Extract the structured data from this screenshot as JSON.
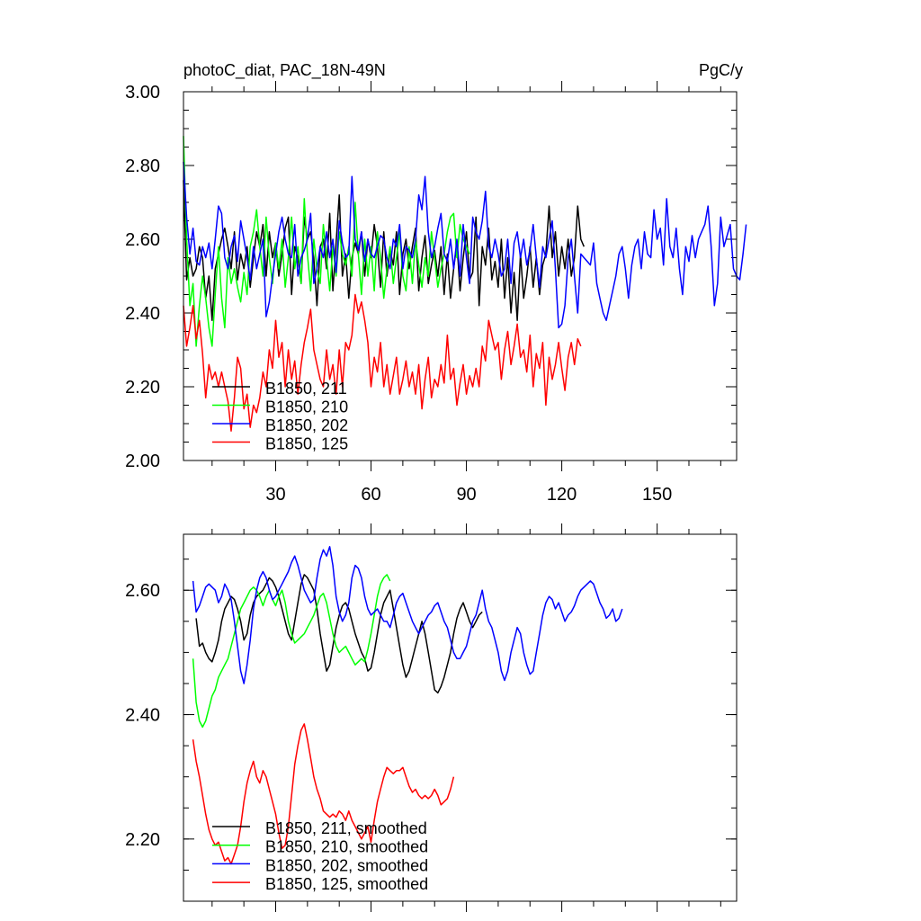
{
  "chart_data": [
    {
      "type": "line",
      "title": "photoC_diat, PAC_18N-49N",
      "units": "PgC/y",
      "ylim": [
        2.0,
        3.0
      ],
      "xlim": [
        1,
        175
      ],
      "y_ticks": [
        "2.00",
        "2.20",
        "2.40",
        "2.60",
        "2.80",
        "3.00"
      ],
      "x_ticks": [
        "30",
        "60",
        "90",
        "120",
        "150"
      ],
      "legend_position": "bottom-left",
      "series": [
        {
          "name": "B1850, 211",
          "color": "#000000",
          "x_start": 1,
          "values": [
            2.76,
            2.49,
            2.55,
            2.5,
            2.52,
            2.58,
            2.55,
            2.44,
            2.5,
            2.38,
            2.52,
            2.56,
            2.6,
            2.63,
            2.58,
            2.52,
            2.62,
            2.49,
            2.56,
            2.52,
            2.58,
            2.47,
            2.55,
            2.62,
            2.58,
            2.64,
            2.5,
            2.62,
            2.55,
            2.59,
            2.5,
            2.56,
            2.63,
            2.66,
            2.45,
            2.58,
            2.55,
            2.48,
            2.66,
            2.6,
            2.62,
            2.55,
            2.42,
            2.58,
            2.6,
            2.52,
            2.67,
            2.46,
            2.59,
            2.72,
            2.5,
            2.56,
            2.44,
            2.55,
            2.59,
            2.56,
            2.62,
            2.5,
            2.6,
            2.55,
            2.64,
            2.58,
            2.47,
            2.62,
            2.5,
            2.57,
            2.53,
            2.62,
            2.45,
            2.56,
            2.6,
            2.52,
            2.58,
            2.63,
            2.46,
            2.55,
            2.61,
            2.48,
            2.53,
            2.57,
            2.5,
            2.58,
            2.45,
            2.56,
            2.44,
            2.52,
            2.59,
            2.46,
            2.55,
            2.62,
            2.49,
            2.51,
            2.66,
            2.42,
            2.58,
            2.53,
            2.63,
            2.49,
            2.54,
            2.47,
            2.6,
            2.44,
            2.55,
            2.4,
            2.51,
            2.38,
            2.56,
            2.44,
            2.5,
            2.58,
            2.47,
            2.55,
            2.45,
            2.53,
            2.56,
            2.69,
            2.55,
            2.62,
            2.5,
            2.58,
            2.52,
            2.6,
            2.5,
            2.55,
            2.69,
            2.6,
            2.58
          ]
        },
        {
          "name": "B1850, 210",
          "color": "#00ff00",
          "x_start": 1,
          "values": [
            2.88,
            2.6,
            2.42,
            2.48,
            2.31,
            2.42,
            2.5,
            2.44,
            2.36,
            2.31,
            2.45,
            2.58,
            2.44,
            2.36,
            2.55,
            2.48,
            2.52,
            2.47,
            2.43,
            2.51,
            2.45,
            2.58,
            2.62,
            2.68,
            2.58,
            2.5,
            2.66,
            2.55,
            2.48,
            2.59,
            2.52,
            2.6,
            2.47,
            2.55,
            2.66,
            2.52,
            2.58,
            2.48,
            2.71,
            2.56,
            2.46,
            2.6,
            2.52,
            2.48,
            2.64,
            2.55,
            2.46,
            2.58,
            2.5,
            2.62,
            2.56,
            2.53,
            2.58,
            2.5,
            2.7,
            2.56,
            2.45,
            2.6,
            2.5,
            2.58,
            2.46,
            2.62,
            2.55,
            2.44,
            2.52,
            2.58,
            2.48,
            2.55,
            2.62,
            2.5,
            2.46,
            2.58,
            2.48,
            2.6,
            2.53,
            2.47,
            2.55,
            2.5,
            2.62,
            2.55,
            2.47,
            2.52,
            2.56,
            2.62,
            2.66,
            2.67,
            2.55,
            2.64,
            2.6,
            2.58,
            2.56
          ]
        },
        {
          "name": "B1850, 202",
          "color": "#0000ff",
          "x_start": 1,
          "values": [
            2.81,
            2.66,
            2.56,
            2.63,
            2.54,
            2.53,
            2.58,
            2.55,
            2.59,
            2.52,
            2.6,
            2.69,
            2.67,
            2.55,
            2.52,
            2.58,
            2.61,
            2.54,
            2.65,
            2.6,
            2.55,
            2.49,
            2.58,
            2.52,
            2.56,
            2.6,
            2.39,
            2.43,
            2.5,
            2.56,
            2.62,
            2.66,
            2.6,
            2.56,
            2.55,
            2.64,
            2.5,
            2.55,
            2.57,
            2.6,
            2.67,
            2.48,
            2.52,
            2.58,
            2.55,
            2.62,
            2.55,
            2.6,
            2.51,
            2.65,
            2.59,
            2.55,
            2.56,
            2.77,
            2.6,
            2.57,
            2.62,
            2.54,
            2.6,
            2.56,
            2.55,
            2.58,
            2.61,
            2.6,
            2.55,
            2.52,
            2.6,
            2.58,
            2.64,
            2.52,
            2.58,
            2.57,
            2.55,
            2.6,
            2.72,
            2.68,
            2.77,
            2.62,
            2.55,
            2.58,
            2.63,
            2.67,
            2.56,
            2.54,
            2.6,
            2.52,
            2.6,
            2.5,
            2.64,
            2.55,
            2.48,
            2.66,
            2.62,
            2.6,
            2.65,
            2.73,
            2.58,
            2.55,
            2.6,
            2.56,
            2.5,
            2.52,
            2.6,
            2.48,
            2.59,
            2.62,
            2.55,
            2.6,
            2.53,
            2.57,
            2.64,
            2.55,
            2.47,
            2.58,
            2.55,
            2.6,
            2.65,
            2.52,
            2.36,
            2.37,
            2.42,
            2.55,
            2.6,
            2.5,
            2.4,
            2.56,
            2.55,
            2.54,
            2.53,
            2.59,
            2.48,
            2.44,
            2.4,
            2.38,
            2.42,
            2.46,
            2.5,
            2.56,
            2.58,
            2.52,
            2.44,
            2.53,
            2.58,
            2.6,
            2.52,
            2.62,
            2.56,
            2.55,
            2.68,
            2.6,
            2.63,
            2.53,
            2.71,
            2.58,
            2.55,
            2.63,
            2.52,
            2.45,
            2.58,
            2.54,
            2.61,
            2.55,
            2.6,
            2.62,
            2.64,
            2.69,
            2.58,
            2.42,
            2.48,
            2.66,
            2.58,
            2.61,
            2.64,
            2.52,
            2.5,
            2.49,
            2.56,
            2.64
          ]
        },
        {
          "name": "B1850, 125",
          "color": "#ff0000",
          "x_start": 1,
          "values": [
            2.42,
            2.31,
            2.36,
            2.42,
            2.33,
            2.38,
            2.29,
            2.17,
            2.26,
            2.22,
            2.24,
            2.2,
            2.24,
            2.2,
            2.16,
            2.08,
            2.17,
            2.28,
            2.25,
            2.14,
            2.18,
            2.09,
            2.15,
            2.13,
            2.17,
            2.24,
            2.2,
            2.3,
            2.25,
            2.38,
            2.28,
            2.32,
            2.2,
            2.3,
            2.22,
            2.27,
            2.18,
            2.26,
            2.32,
            2.36,
            2.41,
            2.3,
            2.26,
            2.22,
            2.2,
            2.3,
            2.22,
            2.26,
            2.18,
            2.3,
            2.2,
            2.32,
            2.3,
            2.34,
            2.45,
            2.4,
            2.43,
            2.38,
            2.32,
            2.2,
            2.28,
            2.24,
            2.32,
            2.2,
            2.26,
            2.18,
            2.23,
            2.28,
            2.18,
            2.22,
            2.27,
            2.2,
            2.24,
            2.18,
            2.26,
            2.14,
            2.22,
            2.28,
            2.17,
            2.22,
            2.2,
            2.26,
            2.21,
            2.34,
            2.22,
            2.25,
            2.15,
            2.21,
            2.26,
            2.18,
            2.23,
            2.2,
            2.25,
            2.2,
            2.31,
            2.27,
            2.38,
            2.34,
            2.3,
            2.32,
            2.22,
            2.3,
            2.35,
            2.26,
            2.31,
            2.37,
            2.28,
            2.3,
            2.24,
            2.34,
            2.2,
            2.29,
            2.25,
            2.32,
            2.15,
            2.28,
            2.22,
            2.26,
            2.32,
            2.25,
            2.19,
            2.28,
            2.32,
            2.26,
            2.33,
            2.31
          ]
        }
      ]
    },
    {
      "type": "line",
      "ylim": [
        2.1,
        2.69
      ],
      "xlim": [
        1,
        175
      ],
      "y_ticks": [
        "2.20",
        "2.40",
        "2.60"
      ],
      "legend_position": "bottom-left",
      "series": [
        {
          "name": "B1850, 211, smoothed",
          "color": "#000000",
          "x_start": 5,
          "values": [
            2.555,
            2.51,
            2.515,
            2.5,
            2.49,
            2.485,
            2.5,
            2.52,
            2.55,
            2.57,
            2.58,
            2.59,
            2.585,
            2.57,
            2.55,
            2.52,
            2.53,
            2.56,
            2.58,
            2.59,
            2.595,
            2.6,
            2.61,
            2.62,
            2.615,
            2.605,
            2.59,
            2.57,
            2.55,
            2.53,
            2.52,
            2.55,
            2.58,
            2.61,
            2.625,
            2.62,
            2.61,
            2.6,
            2.57,
            2.53,
            2.5,
            2.47,
            2.48,
            2.51,
            2.54,
            2.56,
            2.575,
            2.58,
            2.57,
            2.55,
            2.53,
            2.515,
            2.5,
            2.49,
            2.47,
            2.475,
            2.5,
            2.53,
            2.56,
            2.58,
            2.59,
            2.6,
            2.57,
            2.54,
            2.51,
            2.48,
            2.46,
            2.47,
            2.49,
            2.51,
            2.53,
            2.55,
            2.53,
            2.5,
            2.47,
            2.44,
            2.435,
            2.445,
            2.46,
            2.48,
            2.5,
            2.53,
            2.555,
            2.57,
            2.58,
            2.565,
            2.55,
            2.54,
            2.55,
            2.56,
            2.565
          ]
        },
        {
          "name": "B1850, 210, smoothed",
          "color": "#00ff00",
          "x_start": 4,
          "values": [
            2.49,
            2.42,
            2.39,
            2.38,
            2.39,
            2.41,
            2.43,
            2.44,
            2.46,
            2.47,
            2.48,
            2.49,
            2.51,
            2.53,
            2.55,
            2.57,
            2.58,
            2.59,
            2.6,
            2.605,
            2.6,
            2.59,
            2.575,
            2.59,
            2.6,
            2.585,
            2.575,
            2.59,
            2.6,
            2.58,
            2.55,
            2.53,
            2.515,
            2.52,
            2.525,
            2.53,
            2.54,
            2.55,
            2.56,
            2.575,
            2.59,
            2.595,
            2.58,
            2.555,
            2.53,
            2.51,
            2.5,
            2.505,
            2.51,
            2.5,
            2.49,
            2.48,
            2.485,
            2.49,
            2.485,
            2.505,
            2.53,
            2.56,
            2.59,
            2.61,
            2.62,
            2.625,
            2.615
          ]
        },
        {
          "name": "B1850, 202, smoothed",
          "color": "#0000ff",
          "x_start": 4,
          "values": [
            2.615,
            2.565,
            2.575,
            2.59,
            2.605,
            2.61,
            2.605,
            2.6,
            2.58,
            2.59,
            2.61,
            2.6,
            2.585,
            2.55,
            2.51,
            2.47,
            2.45,
            2.48,
            2.52,
            2.57,
            2.6,
            2.62,
            2.63,
            2.62,
            2.6,
            2.585,
            2.59,
            2.6,
            2.61,
            2.62,
            2.63,
            2.645,
            2.655,
            2.64,
            2.62,
            2.6,
            2.59,
            2.58,
            2.585,
            2.62,
            2.65,
            2.665,
            2.655,
            2.67,
            2.64,
            2.59,
            2.565,
            2.55,
            2.56,
            2.58,
            2.62,
            2.64,
            2.635,
            2.62,
            2.59,
            2.57,
            2.56,
            2.565,
            2.57,
            2.56,
            2.55,
            2.55,
            2.54,
            2.56,
            2.58,
            2.59,
            2.595,
            2.58,
            2.565,
            2.55,
            2.54,
            2.53,
            2.54,
            2.55,
            2.56,
            2.565,
            2.575,
            2.58,
            2.565,
            2.55,
            2.54,
            2.52,
            2.5,
            2.49,
            2.49,
            2.5,
            2.51,
            2.53,
            2.55,
            2.56,
            2.58,
            2.6,
            2.57,
            2.55,
            2.54,
            2.52,
            2.5,
            2.47,
            2.455,
            2.47,
            2.5,
            2.52,
            2.54,
            2.53,
            2.5,
            2.48,
            2.465,
            2.47,
            2.5,
            2.53,
            2.56,
            2.58,
            2.59,
            2.585,
            2.57,
            2.58,
            2.565,
            2.55,
            2.56,
            2.565,
            2.575,
            2.59,
            2.6,
            2.605,
            2.61,
            2.615,
            2.61,
            2.595,
            2.58,
            2.57,
            2.555,
            2.56,
            2.57,
            2.55,
            2.555,
            2.57
          ]
        },
        {
          "name": "B1850, 125, smoothed",
          "color": "#ff0000",
          "x_start": 4,
          "values": [
            2.36,
            2.325,
            2.3,
            2.27,
            2.24,
            2.215,
            2.2,
            2.19,
            2.195,
            2.18,
            2.165,
            2.17,
            2.16,
            2.175,
            2.19,
            2.22,
            2.26,
            2.29,
            2.31,
            2.325,
            2.3,
            2.29,
            2.31,
            2.3,
            2.28,
            2.26,
            2.24,
            2.21,
            2.185,
            2.19,
            2.22,
            2.27,
            2.32,
            2.35,
            2.375,
            2.385,
            2.36,
            2.33,
            2.3,
            2.28,
            2.265,
            2.245,
            2.24,
            2.235,
            2.24,
            2.235,
            2.245,
            2.24,
            2.23,
            2.245,
            2.23,
            2.22,
            2.21,
            2.2,
            2.21,
            2.22,
            2.195,
            2.23,
            2.26,
            2.28,
            2.3,
            2.315,
            2.31,
            2.305,
            2.31,
            2.31,
            2.315,
            2.3,
            2.285,
            2.275,
            2.28,
            2.27,
            2.265,
            2.27,
            2.265,
            2.27,
            2.28,
            2.27,
            2.255,
            2.26,
            2.265,
            2.28,
            2.3
          ]
        }
      ]
    }
  ]
}
